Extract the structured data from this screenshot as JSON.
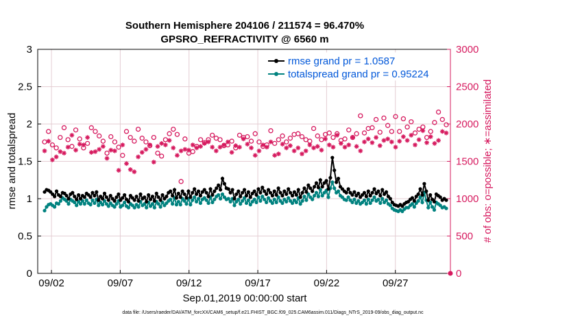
{
  "chart_data": {
    "type": "line",
    "title": "Southern Hemisphere 204106 / 211574 = 96.470%",
    "subtitle": "GPSRO_REFRACTIVITY @ 6560 m",
    "xlabel": "Sep.01,2019 00:00:00 start",
    "ylabel_left": "rmse and totalspread",
    "ylabel_right": "# of obs: o=possible; ∗=assimilated",
    "footnote": "data file: /Users/raeder/DAI/ATM_forcXX/CAM6_setup/f.e21.FHIST_BGC.f09_025.CAM6assim.011/Diags_NTrS_2019-09/obs_diag_output.nc",
    "xlim": [
      0.5,
      30.5
    ],
    "ylim_left": [
      0,
      3
    ],
    "ylim_right": [
      0,
      3000
    ],
    "x_ticks": [
      1.5,
      6.5,
      11.5,
      16.5,
      21.5,
      26.5
    ],
    "x_tick_labels": [
      "09/02",
      "09/07",
      "09/12",
      "09/17",
      "09/22",
      "09/27"
    ],
    "y_left_ticks": [
      "0",
      "0.5",
      "1",
      "1.5",
      "2",
      "2.5",
      "3"
    ],
    "y_right_ticks": [
      "0",
      "500",
      "1000",
      "1500",
      "2000",
      "2500",
      "3000"
    ],
    "grid": true,
    "legend_position": "top-right",
    "colors": {
      "rmse": "#000000",
      "spread": "#00827f",
      "obs": "#d6195e"
    },
    "series": [
      {
        "name": "rmse grand pr = 1.0587",
        "axis": "left",
        "values": [
          1.09,
          1.12,
          1.11,
          1.09,
          1.06,
          1.03,
          1.1,
          1.05,
          1.03,
          1.08,
          1.07,
          1.04,
          1.0,
          1.06,
          1.08,
          1.03,
          0.99,
          1.05,
          1.0,
          1.04,
          1.02,
          1.07,
          1.05,
          1.02,
          1.08,
          1.04,
          1.09,
          0.98,
          1.03,
          1.0,
          1.07,
          1.02,
          0.98,
          1.04,
          1.0,
          0.97,
          1.02,
          1.06,
          0.98,
          1.01,
          1.05,
          0.99,
          0.96,
          1.04,
          1.01,
          0.98,
          1.03,
          0.97,
          1.06,
          1.0,
          1.02,
          0.96,
          1.05,
          0.99,
          1.03,
          0.97,
          1.07,
          1.02,
          0.98,
          1.05,
          1.0,
          1.03,
          1.08,
          1.1,
          1.04,
          1.12,
          1.01,
          1.07,
          1.02,
          1.1,
          1.06,
          1.01,
          1.1,
          1.02,
          1.08,
          1.13,
          1.06,
          1.1,
          1.04,
          1.09,
          1.12,
          1.08,
          1.03,
          1.13,
          1.05,
          1.1,
          1.14,
          1.18,
          1.12,
          1.27,
          1.2,
          1.14,
          1.13,
          1.08,
          1.12,
          1.0,
          1.06,
          1.1,
          1.03,
          1.08,
          1.12,
          1.04,
          1.09,
          1.02,
          1.07,
          1.1,
          1.05,
          1.13,
          1.08,
          1.15,
          1.1,
          1.06,
          1.12,
          1.08,
          1.04,
          1.1,
          1.05,
          1.14,
          1.08,
          1.04,
          1.1,
          1.06,
          1.13,
          1.08,
          1.04,
          1.09,
          1.05,
          1.12,
          1.02,
          1.08,
          1.14,
          1.09,
          1.18,
          1.14,
          1.1,
          1.16,
          1.21,
          1.15,
          1.25,
          1.16,
          1.21,
          1.24,
          1.13,
          1.28,
          1.55,
          1.38,
          1.22,
          1.27,
          1.16,
          1.13,
          1.1,
          1.08,
          1.13,
          1.08,
          1.05,
          1.09,
          1.04,
          1.07,
          1.02,
          1.05,
          1.08,
          1.03,
          1.1,
          1.04,
          1.08,
          1.13,
          1.07,
          1.1,
          1.04,
          1.12,
          1.06,
          1.09,
          1.03,
          1.0,
          0.95,
          0.92,
          0.91,
          0.9,
          0.92,
          0.9,
          0.93,
          0.95,
          0.96,
          0.99,
          1.01,
          0.97,
          1.03,
          1.06,
          1.13,
          1.05,
          1.2,
          1.1,
          0.98,
          1.05,
          0.99,
          0.96,
          1.06,
          1.04,
          1.02,
          0.98,
          1.0,
          0.98
        ],
        "markers": "filled-circle"
      },
      {
        "name": "totalspread grand pr = 0.95224",
        "axis": "left",
        "values": [
          0.84,
          0.89,
          0.92,
          0.93,
          0.91,
          0.89,
          0.94,
          0.93,
          0.97,
          1.01,
          0.99,
          0.97,
          0.93,
          0.99,
          0.97,
          0.95,
          0.91,
          0.96,
          0.93,
          0.97,
          0.93,
          0.98,
          0.94,
          0.92,
          0.98,
          0.94,
          0.99,
          0.91,
          0.95,
          0.92,
          0.97,
          0.93,
          0.9,
          0.94,
          0.91,
          0.89,
          0.93,
          0.97,
          0.89,
          0.91,
          0.95,
          0.9,
          0.88,
          0.93,
          0.91,
          0.88,
          0.92,
          0.89,
          0.96,
          0.91,
          0.93,
          0.88,
          0.95,
          0.9,
          0.93,
          0.88,
          0.96,
          0.93,
          0.89,
          0.95,
          0.91,
          0.94,
          0.97,
          0.99,
          0.93,
          1.01,
          0.92,
          0.96,
          0.92,
          1.0,
          0.97,
          0.93,
          1.0,
          0.92,
          0.98,
          1.02,
          0.96,
          1.0,
          0.94,
          0.99,
          1.01,
          0.98,
          0.94,
          1.02,
          0.95,
          0.99,
          1.03,
          1.05,
          1.0,
          1.06,
          1.02,
          0.99,
          1.0,
          0.96,
          1.0,
          0.91,
          0.96,
          0.99,
          0.93,
          0.97,
          1.01,
          0.94,
          0.98,
          0.92,
          0.96,
          0.99,
          0.95,
          1.02,
          0.97,
          1.03,
          0.99,
          0.95,
          1.01,
          0.97,
          0.94,
          0.99,
          0.95,
          1.02,
          0.97,
          0.94,
          0.99,
          0.96,
          1.01,
          0.97,
          0.94,
          0.98,
          0.95,
          1.01,
          0.93,
          0.97,
          1.03,
          0.98,
          1.06,
          1.02,
          0.99,
          1.04,
          1.08,
          1.03,
          1.12,
          1.04,
          1.08,
          1.11,
          1.02,
          1.14,
          1.22,
          1.14,
          1.08,
          1.1,
          1.04,
          1.02,
          0.99,
          0.98,
          1.02,
          0.98,
          0.95,
          0.99,
          0.94,
          0.97,
          0.93,
          0.95,
          0.98,
          0.93,
          0.99,
          0.94,
          0.98,
          1.02,
          0.97,
          0.99,
          0.94,
          1.0,
          0.95,
          0.98,
          0.93,
          0.91,
          0.87,
          0.85,
          0.84,
          0.83,
          0.85,
          0.83,
          0.86,
          0.88,
          0.88,
          0.91,
          0.93,
          0.89,
          0.94,
          0.97,
          1.02,
          0.95,
          1.08,
          0.98,
          0.88,
          0.95,
          0.89,
          0.85,
          0.95,
          0.93,
          0.91,
          0.88,
          0.89,
          0.87
        ]
      },
      {
        "name": "possible",
        "axis": "right",
        "markers": "open-circle",
        "values": [
          1760,
          1900,
          1720,
          1680,
          1820,
          1950,
          1790,
          1700,
          1920,
          1800,
          1680,
          1740,
          1950,
          1900,
          1840,
          1770,
          1610,
          1830,
          1760,
          1690,
          1580,
          1900,
          1820,
          1770,
          1930,
          1810,
          1760,
          1710,
          1820,
          1610,
          1570,
          1790,
          1870,
          1930,
          1860,
          1230,
          1800,
          1610,
          1630,
          1700,
          1790,
          1750,
          1790,
          1850,
          1810,
          1790,
          1710,
          1720,
          1770,
          1680,
          1850,
          1820,
          1830,
          1770,
          1870,
          1760,
          1700,
          1720,
          1910,
          1740,
          1790,
          1840,
          1760,
          1810,
          1860,
          1870,
          1830,
          1790,
          1770,
          1940,
          1840,
          1790,
          1860,
          1880,
          1820,
          1870,
          1780,
          1800,
          1920,
          1820,
          1870,
          2110,
          1880,
          1940,
          1950,
          2060,
          1890,
          2080,
          1980,
          1900,
          2100,
          1900,
          2070,
          1960,
          2030,
          1880,
          1930,
          1960,
          1820,
          1900,
          2020,
          2160,
          2060,
          1990
        ]
      },
      {
        "name": "assimilated",
        "axis": "right",
        "markers": "asterisk",
        "values": [
          1640,
          1770,
          1520,
          1560,
          1630,
          1610,
          1690,
          1850,
          1650,
          1730,
          1720,
          1820,
          1620,
          1630,
          1660,
          1700,
          1540,
          1650,
          1640,
          1380,
          1720,
          1470,
          1390,
          1360,
          1560,
          1620,
          1660,
          1720,
          1490,
          1700,
          1740,
          1720,
          1780,
          1680,
          1580,
          1640,
          1660,
          1650,
          1720,
          1680,
          1700,
          1740,
          1760,
          1690,
          1640,
          1690,
          1720,
          1760,
          1620,
          1710,
          1690,
          1800,
          1730,
          1680,
          1580,
          1640,
          1720,
          1690,
          1760,
          1580,
          1600,
          1730,
          1680,
          1710,
          1640,
          1680,
          1600,
          1640,
          1720,
          1680,
          1700,
          1650,
          1800,
          1720,
          1690,
          1850,
          1740,
          1690,
          1720,
          1820,
          1700,
          1640,
          1760,
          1800,
          1750,
          1820,
          1710,
          1780,
          1800,
          1760,
          1690,
          1770,
          1830,
          1780,
          1850,
          1720,
          1790,
          1910,
          1750,
          1830,
          1740,
          1780,
          1900,
          1880
        ]
      }
    ]
  }
}
